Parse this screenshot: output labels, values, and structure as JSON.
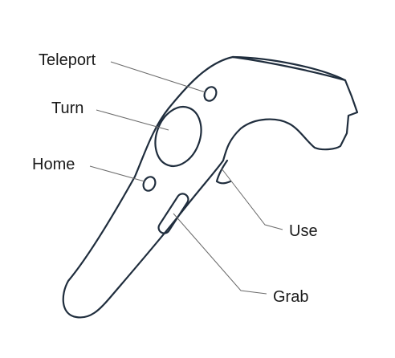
{
  "diagram": {
    "subject": "VR controller",
    "labels": {
      "teleport": "Teleport",
      "turn": "Turn",
      "home": "Home",
      "use": "Use",
      "grab": "Grab"
    }
  }
}
